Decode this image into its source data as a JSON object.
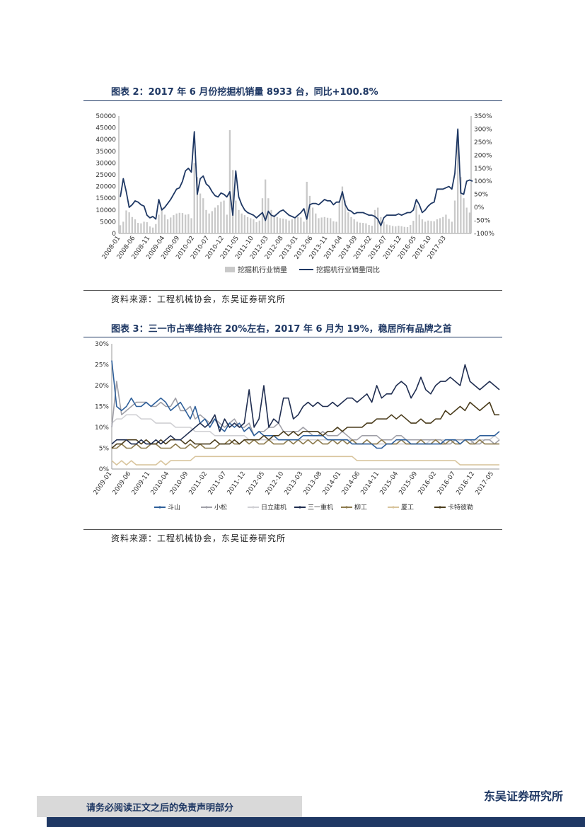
{
  "chart1": {
    "title": "图表 2：2017 年 6 月份挖掘机销量 8933 台，同比+100.8%",
    "source": "资料来源：工程机械协会，东吴证券研究所",
    "chart_data": {
      "type": "bar+line",
      "title": "图表 2：2017 年 6 月份挖掘机销量 8933 台，同比+100.8%",
      "y_left_ticks": [
        "50000",
        "45000",
        "40000",
        "35000",
        "30000",
        "25000",
        "20000",
        "15000",
        "10000",
        "5000",
        "0"
      ],
      "y_right_ticks": [
        "350%",
        "300%",
        "250%",
        "200%",
        "150%",
        "100%",
        "50%",
        "0%",
        "-50%",
        "-100%"
      ],
      "ylim_left": [
        0,
        50000
      ],
      "ylim_right": [
        -100,
        350
      ],
      "x_ticks": [
        "2008-01",
        "2008-06",
        "2008-11",
        "2009-04",
        "2009-09",
        "2010-02",
        "2010-07",
        "2010-12",
        "2011-05",
        "2011-10",
        "2012-03",
        "2012-08",
        "2013-01",
        "2013-06",
        "2013-11",
        "2014-04",
        "2014-09",
        "2015-02",
        "2015-07",
        "2015-12",
        "2016-05",
        "2016-10",
        "2017-03"
      ],
      "legend": [
        "挖掘机行业销量",
        "挖掘机行业销量同比"
      ],
      "series": [
        {
          "name": "挖掘机行业销量",
          "type": "bar",
          "values": [
            3500,
            5000,
            9800,
            9000,
            7000,
            6000,
            4500,
            4300,
            5000,
            4800,
            3000,
            2500,
            4000,
            8000,
            11000,
            8000,
            6000,
            6800,
            7800,
            8500,
            8800,
            8700,
            8000,
            8200,
            6500,
            30000,
            24000,
            17000,
            15000,
            10000,
            8500,
            9500,
            11000,
            12000,
            13500,
            14000,
            8000,
            44000,
            27000,
            14000,
            10000,
            8500,
            7800,
            7000,
            6500,
            6000,
            4800,
            5500,
            15000,
            23000,
            15000,
            10000,
            8000,
            7000,
            6500,
            6300,
            6000,
            5500,
            6000,
            6300,
            7000,
            6800,
            5000,
            22000,
            16000,
            11000,
            8500,
            6500,
            6800,
            7000,
            6700,
            6500,
            5200,
            5000,
            14000,
            20000,
            14000,
            9000,
            7000,
            6000,
            5000,
            4600,
            4500,
            4300,
            3600,
            3300,
            10000,
            11000,
            7000,
            5000,
            3800,
            3500,
            3200,
            3000,
            3300,
            3100,
            2800,
            2700,
            3600,
            5400,
            12000,
            8000,
            6000,
            5000,
            5500,
            5300,
            5200,
            6000,
            6500,
            7000,
            8000,
            6200,
            5000,
            14000,
            44000,
            24000,
            15000,
            11000,
            8900
          ]
        },
        {
          "name": "挖掘机行业销量同比",
          "type": "line",
          "values": [
            40,
            110,
            60,
            0,
            10,
            25,
            20,
            10,
            5,
            -30,
            -40,
            -35,
            -45,
            30,
            -10,
            0,
            15,
            30,
            50,
            70,
            75,
            100,
            140,
            150,
            135,
            290,
            50,
            110,
            120,
            90,
            80,
            60,
            45,
            40,
            55,
            50,
            40,
            60,
            -30,
            140,
            40,
            10,
            -10,
            -20,
            -25,
            -30,
            -40,
            -30,
            -20,
            -50,
            -15,
            -30,
            -35,
            -25,
            -15,
            -10,
            -20,
            -30,
            -35,
            -40,
            -30,
            -20,
            -5,
            -45,
            10,
            15,
            15,
            10,
            20,
            30,
            25,
            25,
            10,
            20,
            20,
            60,
            10,
            -10,
            -15,
            -25,
            -20,
            -20,
            -20,
            -25,
            -30,
            -30,
            -35,
            -45,
            -70,
            -40,
            -30,
            -30,
            -30,
            -30,
            -25,
            -30,
            -25,
            -20,
            -20,
            -10,
            30,
            10,
            -20,
            -10,
            5,
            15,
            20,
            70,
            70,
            70,
            75,
            80,
            70,
            130,
            300,
            55,
            50,
            100,
            105,
            100
          ]
        }
      ]
    }
  },
  "chart2": {
    "title": "图表 3：三一市占率维持在 20%左右，2017 年 6 月为 19%，稳居所有品牌之首",
    "source": "资料来源：工程机械协会，东吴证券研究所",
    "chart_data": {
      "type": "line",
      "title": "图表 3：三一市占率维持在 20%左右，2017 年 6 月为 19%，稳居所有品牌之首",
      "y_ticks": [
        "30%",
        "25%",
        "20%",
        "15%",
        "10%",
        "5%",
        "0%"
      ],
      "ylim": [
        0,
        30
      ],
      "x_ticks": [
        "2009-01",
        "2009-06",
        "2009-11",
        "2010-04",
        "2010-09",
        "2011-02",
        "2011-07",
        "2011-12",
        "2012-05",
        "2012-10",
        "2013-03",
        "2013-08",
        "2014-01",
        "2014-06",
        "2014-11",
        "2015-04",
        "2015-09",
        "2016-02",
        "2016-07",
        "2016-12",
        "2017-05"
      ],
      "legend": [
        "斗山",
        "小松",
        "日立建机",
        "三一重机",
        "柳工",
        "厦工",
        "卡特彼勒"
      ],
      "series": [
        {
          "name": "斗山",
          "color": "#2e5f9a",
          "values": [
            26,
            15,
            14,
            15,
            17,
            15,
            15,
            16,
            15,
            16,
            17,
            16,
            14,
            15,
            16,
            14,
            12,
            15,
            11,
            12,
            10,
            12,
            10,
            9,
            11,
            10,
            11,
            9,
            10,
            8,
            9,
            8,
            8,
            8,
            7,
            7,
            7,
            7,
            7,
            8,
            8,
            8,
            8,
            8,
            7,
            7,
            7,
            7,
            7,
            6,
            6,
            6,
            6,
            6,
            5,
            5,
            6,
            6,
            7,
            7,
            7,
            6,
            6,
            6,
            6,
            6,
            6,
            6,
            7,
            7,
            7,
            6,
            7,
            7,
            7,
            8,
            8,
            8,
            8,
            9
          ]
        },
        {
          "name": "小松",
          "color": "#a0a0a8",
          "values": [
            10,
            21,
            13,
            14,
            15,
            16,
            16,
            16,
            15,
            15,
            16,
            15,
            15,
            17,
            14,
            14,
            15,
            12,
            13,
            12,
            11,
            12,
            11,
            10,
            11,
            12,
            10,
            10,
            11,
            8,
            9,
            9,
            10,
            10,
            11,
            9,
            9,
            9,
            9,
            10,
            9,
            8,
            8,
            9,
            8,
            8,
            8,
            9,
            8,
            7,
            7,
            8,
            8,
            8,
            8,
            7,
            7,
            7,
            8,
            8,
            7,
            7,
            7,
            7,
            7,
            7,
            7,
            7,
            6,
            6,
            7,
            7,
            7,
            7,
            6,
            6,
            7,
            7,
            6,
            7
          ]
        },
        {
          "name": "日立建机",
          "color": "#d0d0d4",
          "values": [
            11,
            12,
            12,
            13,
            13,
            13,
            12,
            12,
            12,
            11,
            11,
            11,
            11,
            10,
            10,
            10,
            10,
            9,
            9,
            9,
            9,
            8,
            8,
            8,
            8,
            8,
            8,
            8,
            7,
            7,
            7,
            7,
            7,
            7,
            7,
            7,
            7,
            7,
            7,
            7,
            7,
            7,
            7,
            7,
            7,
            7,
            7,
            7,
            7,
            7,
            6,
            6,
            6,
            6,
            6,
            6,
            6,
            6,
            6,
            6,
            6,
            6,
            6,
            6,
            6,
            7,
            7,
            7,
            7,
            7,
            7,
            7,
            7,
            6,
            7,
            7,
            7,
            7,
            8,
            7
          ]
        },
        {
          "name": "三一重机",
          "color": "#1f2d50",
          "values": [
            6,
            7,
            7,
            7,
            6,
            6,
            7,
            6,
            6,
            7,
            6,
            7,
            8,
            7,
            7,
            8,
            9,
            10,
            11,
            10,
            11,
            13,
            9,
            12,
            10,
            11,
            10,
            11,
            19,
            10,
            12,
            20,
            10,
            12,
            11,
            17,
            17,
            12,
            13,
            15,
            16,
            15,
            16,
            15,
            15,
            16,
            15,
            16,
            17,
            17,
            16,
            17,
            18,
            16,
            20,
            17,
            18,
            18,
            20,
            21,
            20,
            17,
            19,
            22,
            19,
            18,
            20,
            21,
            21,
            22,
            21,
            20,
            25,
            21,
            20,
            19,
            20,
            21,
            20,
            19
          ]
        },
        {
          "name": "柳工",
          "color": "#8c7a4c",
          "values": [
            5,
            5,
            6,
            5,
            5,
            6,
            5,
            5,
            6,
            6,
            5,
            5,
            5,
            6,
            5,
            5,
            6,
            5,
            6,
            5,
            5,
            5,
            6,
            6,
            7,
            6,
            6,
            7,
            6,
            7,
            6,
            6,
            7,
            6,
            6,
            6,
            7,
            6,
            7,
            6,
            7,
            6,
            7,
            6,
            6,
            7,
            6,
            7,
            6,
            7,
            6,
            6,
            7,
            6,
            6,
            7,
            6,
            6,
            6,
            7,
            6,
            6,
            6,
            7,
            6,
            6,
            7,
            6,
            6,
            7,
            6,
            6,
            7,
            6,
            6,
            7,
            6,
            6,
            6,
            6
          ]
        },
        {
          "name": "厦工",
          "color": "#d8c49c",
          "values": [
            2,
            1,
            2,
            1,
            2,
            1,
            1,
            1,
            1,
            1,
            2,
            1,
            2,
            2,
            2,
            2,
            2,
            3,
            3,
            3,
            3,
            3,
            3,
            3,
            3,
            3,
            3,
            3,
            3,
            3,
            3,
            3,
            3,
            3,
            3,
            3,
            3,
            3,
            3,
            3,
            3,
            3,
            3,
            3,
            3,
            3,
            3,
            3,
            3,
            3,
            2,
            2,
            2,
            2,
            2,
            2,
            2,
            2,
            2,
            2,
            2,
            2,
            2,
            2,
            2,
            2,
            2,
            2,
            2,
            2,
            2,
            1,
            1,
            1,
            1,
            1,
            1,
            1,
            1,
            1
          ]
        },
        {
          "name": "卡特彼勒",
          "color": "#4a3c1c",
          "values": [
            5,
            6,
            6,
            7,
            7,
            7,
            6,
            7,
            6,
            6,
            7,
            6,
            7,
            7,
            7,
            6,
            7,
            6,
            6,
            6,
            6,
            7,
            6,
            6,
            6,
            7,
            6,
            7,
            7,
            7,
            7,
            8,
            7,
            8,
            8,
            9,
            8,
            9,
            8,
            9,
            9,
            9,
            9,
            8,
            9,
            9,
            10,
            9,
            10,
            10,
            10,
            10,
            11,
            11,
            12,
            12,
            12,
            13,
            12,
            13,
            12,
            11,
            11,
            12,
            11,
            11,
            12,
            12,
            14,
            13,
            14,
            15,
            14,
            16,
            15,
            14,
            15,
            16,
            13,
            13
          ]
        }
      ]
    }
  },
  "footer": {
    "disclaimer": "请务必阅读正文之后的免责声明部分",
    "brand": "东吴证券研究所"
  }
}
